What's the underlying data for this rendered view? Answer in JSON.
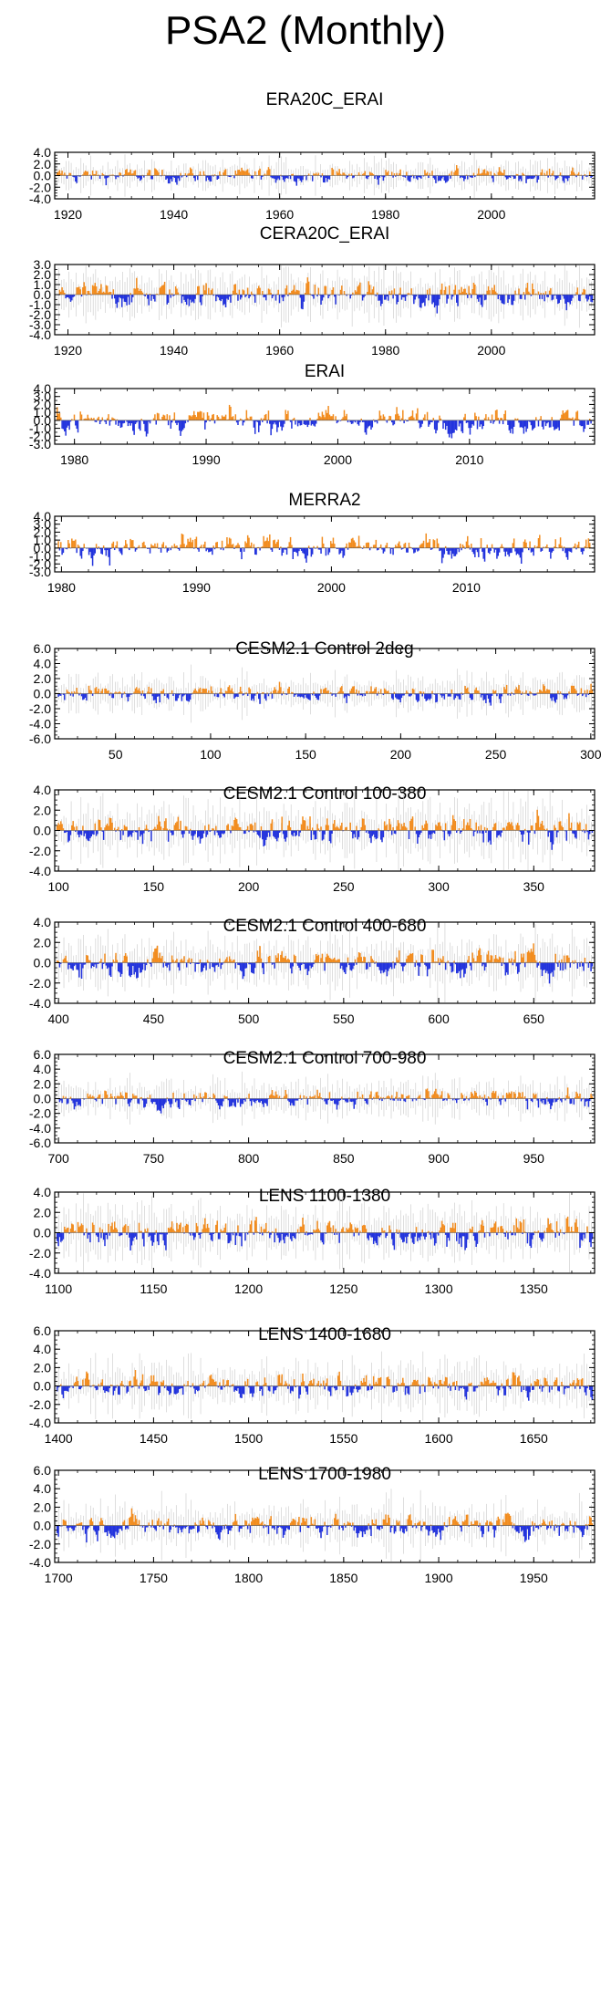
{
  "figure": {
    "title": "PSA2 (Monthly)"
  },
  "colors": {
    "positive": "#f28c1e",
    "negative": "#2233dd",
    "ensemble": "#c8c8c8",
    "axis": "#000000"
  },
  "chart_data": [
    {
      "type": "bar",
      "title": "ERA20C_ERAI",
      "xlim": [
        1917.5,
        2019.5
      ],
      "ylim": [
        -4,
        4
      ],
      "yticks": [
        "4.0",
        "2.0",
        "0.0",
        "-2.0",
        "-4.0"
      ],
      "ytick_values": [
        4,
        2,
        0,
        -2,
        -4
      ],
      "xticks": [
        "1920",
        "1940",
        "1960",
        "1980",
        "2000"
      ],
      "xtick_values": [
        1920,
        1940,
        1960,
        1980,
        2000
      ],
      "amplitude": 1.5,
      "ensemble": true,
      "grid": false
    },
    {
      "type": "bar",
      "title": "CERA20C_ERAI",
      "xlim": [
        1917.5,
        2019.5
      ],
      "ylim": [
        -4,
        3
      ],
      "yticks": [
        "3.0",
        "2.0",
        "1.0",
        "0.0",
        "-1.0",
        "-2.0",
        "-3.0",
        "-4.0"
      ],
      "ytick_values": [
        3,
        2,
        1,
        0,
        -1,
        -2,
        -3,
        -4
      ],
      "xticks": [
        "1920",
        "1940",
        "1960",
        "1980",
        "2000"
      ],
      "xtick_values": [
        1920,
        1940,
        1960,
        1980,
        2000
      ],
      "amplitude": 1.5,
      "ensemble": true,
      "grid": false
    },
    {
      "type": "bar",
      "title": "ERAI",
      "xlim": [
        1978.5,
        2019.5
      ],
      "ylim": [
        -3,
        4
      ],
      "yticks": [
        "4.0",
        "3.0",
        "2.0",
        "1.0",
        "0.0",
        "-1.0",
        "-2.0",
        "-3.0"
      ],
      "ytick_values": [
        4,
        3,
        2,
        1,
        0,
        -1,
        -2,
        -3
      ],
      "xticks": [
        "1980",
        "1990",
        "2000",
        "2010"
      ],
      "xtick_values": [
        1980,
        1990,
        2000,
        2010
      ],
      "amplitude": 1.8,
      "ensemble": false,
      "grid": false
    },
    {
      "type": "bar",
      "title": "MERRA2",
      "xlim": [
        1979.5,
        2019.5
      ],
      "ylim": [
        -3,
        4
      ],
      "yticks": [
        "4.0",
        "3.0",
        "2.0",
        "1.0",
        "0.0",
        "-1.0",
        "-2.0",
        "-3.0"
      ],
      "ytick_values": [
        4,
        3,
        2,
        1,
        0,
        -1,
        -2,
        -3
      ],
      "xticks": [
        "1980",
        "1990",
        "2000",
        "2010"
      ],
      "xtick_values": [
        1980,
        1990,
        2000,
        2010
      ],
      "amplitude": 1.8,
      "ensemble": false,
      "grid": false
    },
    {
      "type": "bar",
      "title": "CESM2.1 Control 2deg",
      "xlim": [
        18,
        302
      ],
      "ylim": [
        -6,
        6
      ],
      "yticks": [
        "6.0",
        "4.0",
        "2.0",
        "0.0",
        "-2.0",
        "-4.0",
        "-6.0"
      ],
      "ytick_values": [
        6,
        4,
        2,
        0,
        -2,
        -4,
        -6
      ],
      "xticks": [
        "50",
        "100",
        "150",
        "200",
        "250",
        "300"
      ],
      "xtick_values": [
        50,
        100,
        150,
        200,
        250,
        300
      ],
      "amplitude": 1.4,
      "ensemble": true,
      "grid": false
    },
    {
      "type": "bar",
      "title": "CESM2.1 Control 100-380",
      "xlim": [
        98,
        382
      ],
      "ylim": [
        -4,
        4
      ],
      "yticks": [
        "4.0",
        "2.0",
        "0.0",
        "-2.0",
        "-4.0"
      ],
      "ytick_values": [
        4,
        2,
        0,
        -2,
        -4
      ],
      "xticks": [
        "100",
        "150",
        "200",
        "250",
        "300",
        "350"
      ],
      "xtick_values": [
        100,
        150,
        200,
        250,
        300,
        350
      ],
      "amplitude": 1.6,
      "ensemble": true,
      "grid": false
    },
    {
      "type": "bar",
      "title": "CESM2.1 Control 400-680",
      "xlim": [
        398,
        682
      ],
      "ylim": [
        -4,
        4
      ],
      "yticks": [
        "4.0",
        "2.0",
        "0.0",
        "-2.0",
        "-4.0"
      ],
      "ytick_values": [
        4,
        2,
        0,
        -2,
        -4
      ],
      "xticks": [
        "400",
        "450",
        "500",
        "550",
        "600",
        "650"
      ],
      "xtick_values": [
        400,
        450,
        500,
        550,
        600,
        650
      ],
      "amplitude": 1.6,
      "ensemble": true,
      "grid": false
    },
    {
      "type": "bar",
      "title": "CESM2.1 Control 700-980",
      "xlim": [
        698,
        982
      ],
      "ylim": [
        -6,
        6
      ],
      "yticks": [
        "6.0",
        "4.0",
        "2.0",
        "0.0",
        "-2.0",
        "-4.0",
        "-6.0"
      ],
      "ytick_values": [
        6,
        4,
        2,
        0,
        -2,
        -4,
        -6
      ],
      "xticks": [
        "700",
        "750",
        "800",
        "850",
        "900",
        "950"
      ],
      "xtick_values": [
        700,
        750,
        800,
        850,
        900,
        950
      ],
      "amplitude": 1.4,
      "ensemble": true,
      "grid": false
    },
    {
      "type": "bar",
      "title": "LENS 1100-1380",
      "xlim": [
        1098,
        1382
      ],
      "ylim": [
        -4,
        4
      ],
      "yticks": [
        "4.0",
        "2.0",
        "0.0",
        "-2.0",
        "-4.0"
      ],
      "ytick_values": [
        4,
        2,
        0,
        -2,
        -4
      ],
      "xticks": [
        "1100",
        "1150",
        "1200",
        "1250",
        "1300",
        "1350"
      ],
      "xtick_values": [
        1100,
        1150,
        1200,
        1250,
        1300,
        1350
      ],
      "amplitude": 1.6,
      "ensemble": true,
      "grid": false
    },
    {
      "type": "bar",
      "title": "LENS 1400-1680",
      "xlim": [
        1398,
        1682
      ],
      "ylim": [
        -4,
        6
      ],
      "yticks": [
        "6.0",
        "4.0",
        "2.0",
        "0.0",
        "-2.0",
        "-4.0"
      ],
      "ytick_values": [
        6,
        4,
        2,
        0,
        -2,
        -4
      ],
      "xticks": [
        "1400",
        "1450",
        "1500",
        "1550",
        "1600",
        "1650"
      ],
      "xtick_values": [
        1400,
        1450,
        1500,
        1550,
        1600,
        1650
      ],
      "amplitude": 1.5,
      "ensemble": true,
      "grid": false
    },
    {
      "type": "bar",
      "title": "LENS 1700-1980",
      "xlim": [
        1698,
        1982
      ],
      "ylim": [
        -4,
        6
      ],
      "yticks": [
        "6.0",
        "4.0",
        "2.0",
        "0.0",
        "-2.0",
        "-4.0"
      ],
      "ytick_values": [
        6,
        4,
        2,
        0,
        -2,
        -4
      ],
      "xticks": [
        "1700",
        "1750",
        "1800",
        "1850",
        "1900",
        "1950"
      ],
      "xtick_values": [
        1700,
        1750,
        1800,
        1850,
        1900,
        1950
      ],
      "amplitude": 1.5,
      "ensemble": true,
      "grid": false
    }
  ]
}
